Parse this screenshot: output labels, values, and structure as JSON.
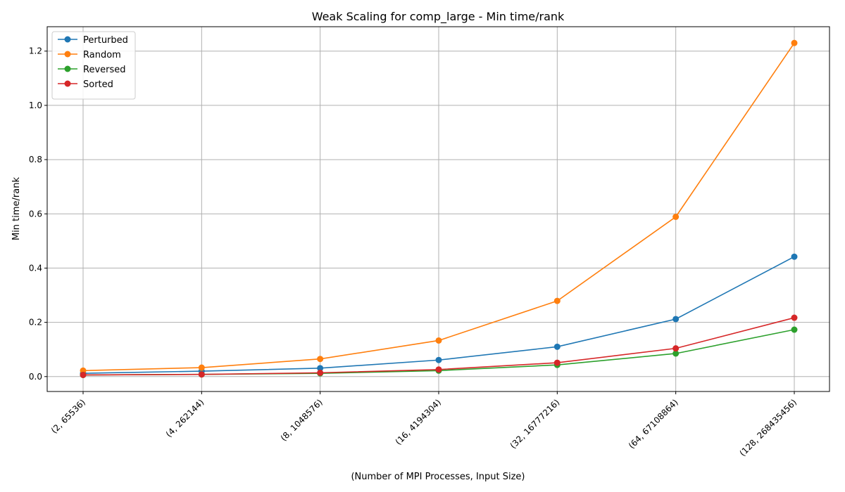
{
  "chart_data": {
    "type": "line",
    "title": "Weak Scaling for comp_large - Min time/rank",
    "xlabel": "(Number of MPI Processes, Input Size)",
    "ylabel": "Min time/rank",
    "categories": [
      "(2, 65536)",
      "(4, 262144)",
      "(8, 1048576)",
      "(16, 4194304)",
      "(32, 16777216)",
      "(64, 67108864)",
      "(128, 268435456)"
    ],
    "ylim": [
      -0.055,
      1.29
    ],
    "yticks": [
      0.0,
      0.2,
      0.4,
      0.6,
      0.8,
      1.0,
      1.2
    ],
    "ytick_labels": [
      "0.0",
      "0.2",
      "0.4",
      "0.6",
      "0.8",
      "1.0",
      "1.2"
    ],
    "grid": true,
    "legend_position": "upper-left",
    "series": [
      {
        "name": "Perturbed",
        "color": "#1f77b4",
        "values": [
          0.012,
          0.02,
          0.031,
          0.061,
          0.11,
          0.212,
          0.442
        ]
      },
      {
        "name": "Random",
        "color": "#ff7f0e",
        "values": [
          0.022,
          0.033,
          0.065,
          0.133,
          0.279,
          0.589,
          1.23
        ]
      },
      {
        "name": "Reversed",
        "color": "#2ca02c",
        "values": [
          0.006,
          0.008,
          0.012,
          0.022,
          0.043,
          0.085,
          0.173
        ]
      },
      {
        "name": "Sorted",
        "color": "#d62728",
        "values": [
          0.006,
          0.008,
          0.014,
          0.026,
          0.051,
          0.104,
          0.217
        ]
      }
    ]
  }
}
